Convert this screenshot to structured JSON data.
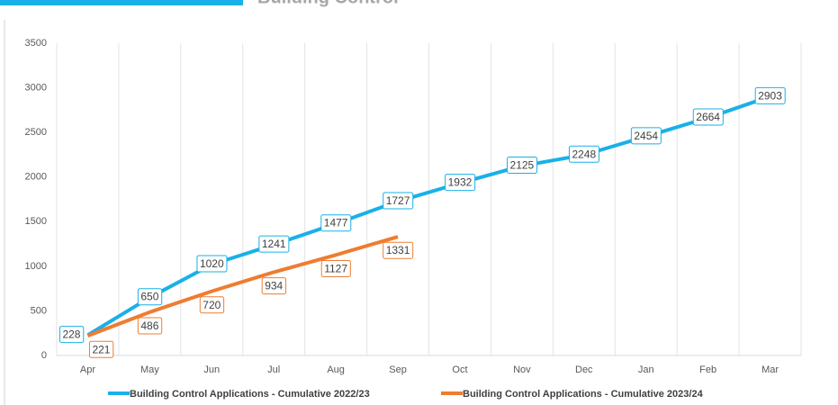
{
  "header": {
    "title": "Building Control"
  },
  "chart_data": {
    "type": "line",
    "categories": [
      "Apr",
      "May",
      "Jun",
      "Jul",
      "Aug",
      "Sep",
      "Oct",
      "Nov",
      "Dec",
      "Jan",
      "Feb",
      "Mar"
    ],
    "series": [
      {
        "name": "Building Control Applications - Cumulative 2022/23",
        "color": "#1ab0e8",
        "values": [
          228,
          650,
          1020,
          1241,
          1477,
          1727,
          1932,
          2125,
          2248,
          2454,
          2664,
          2903
        ]
      },
      {
        "name": "Building Control Applications - Cumulative 2023/24",
        "color": "#ed7d31",
        "values": [
          221,
          486,
          720,
          934,
          1127,
          1331,
          null,
          null,
          null,
          null,
          null,
          null
        ]
      }
    ],
    "ylim": [
      0,
      3500
    ],
    "yticks": [
      0,
      500,
      1000,
      1500,
      2000,
      2500,
      3000,
      3500
    ],
    "vgrid": true,
    "legend": "bottom"
  }
}
